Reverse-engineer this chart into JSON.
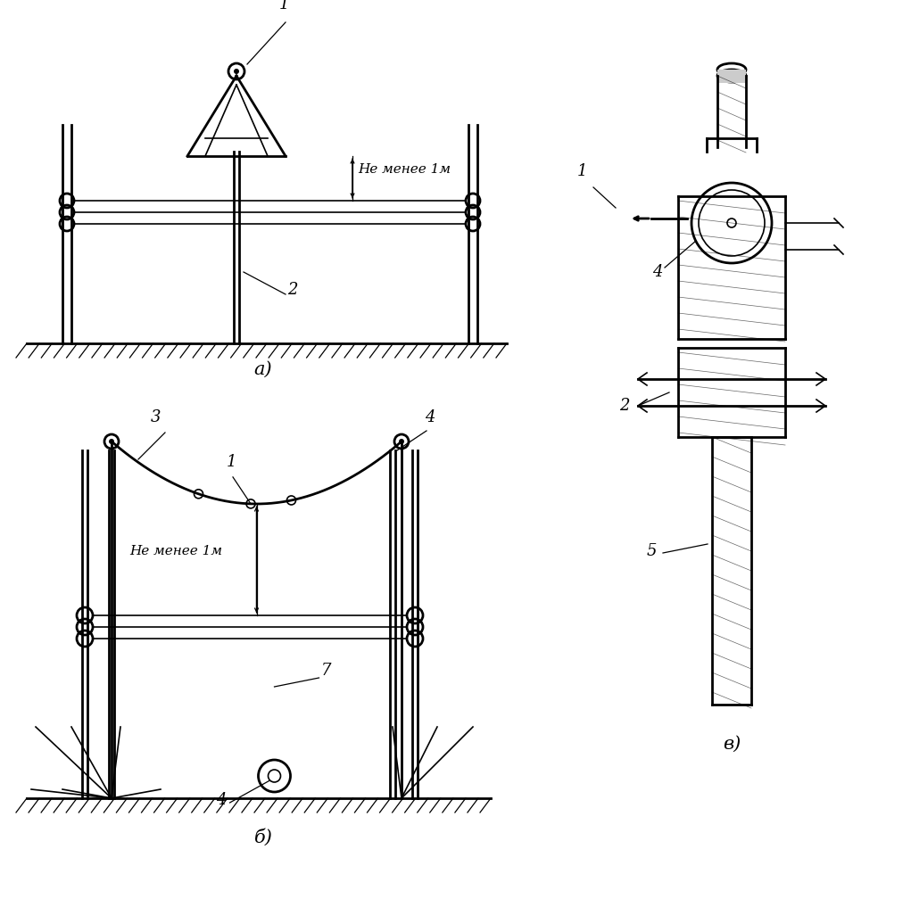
{
  "bg_color": "#ffffff",
  "line_color": "#000000",
  "label_ne_menee": "Не менее 1м",
  "label_1": "1",
  "label_2": "2",
  "label_3": "3",
  "label_4": "4",
  "label_5": "5",
  "label_7": "7",
  "title_a": "а)",
  "title_b": "б)",
  "title_v": "в)",
  "figsize": [
    10.21,
    10.08
  ],
  "dpi": 100
}
